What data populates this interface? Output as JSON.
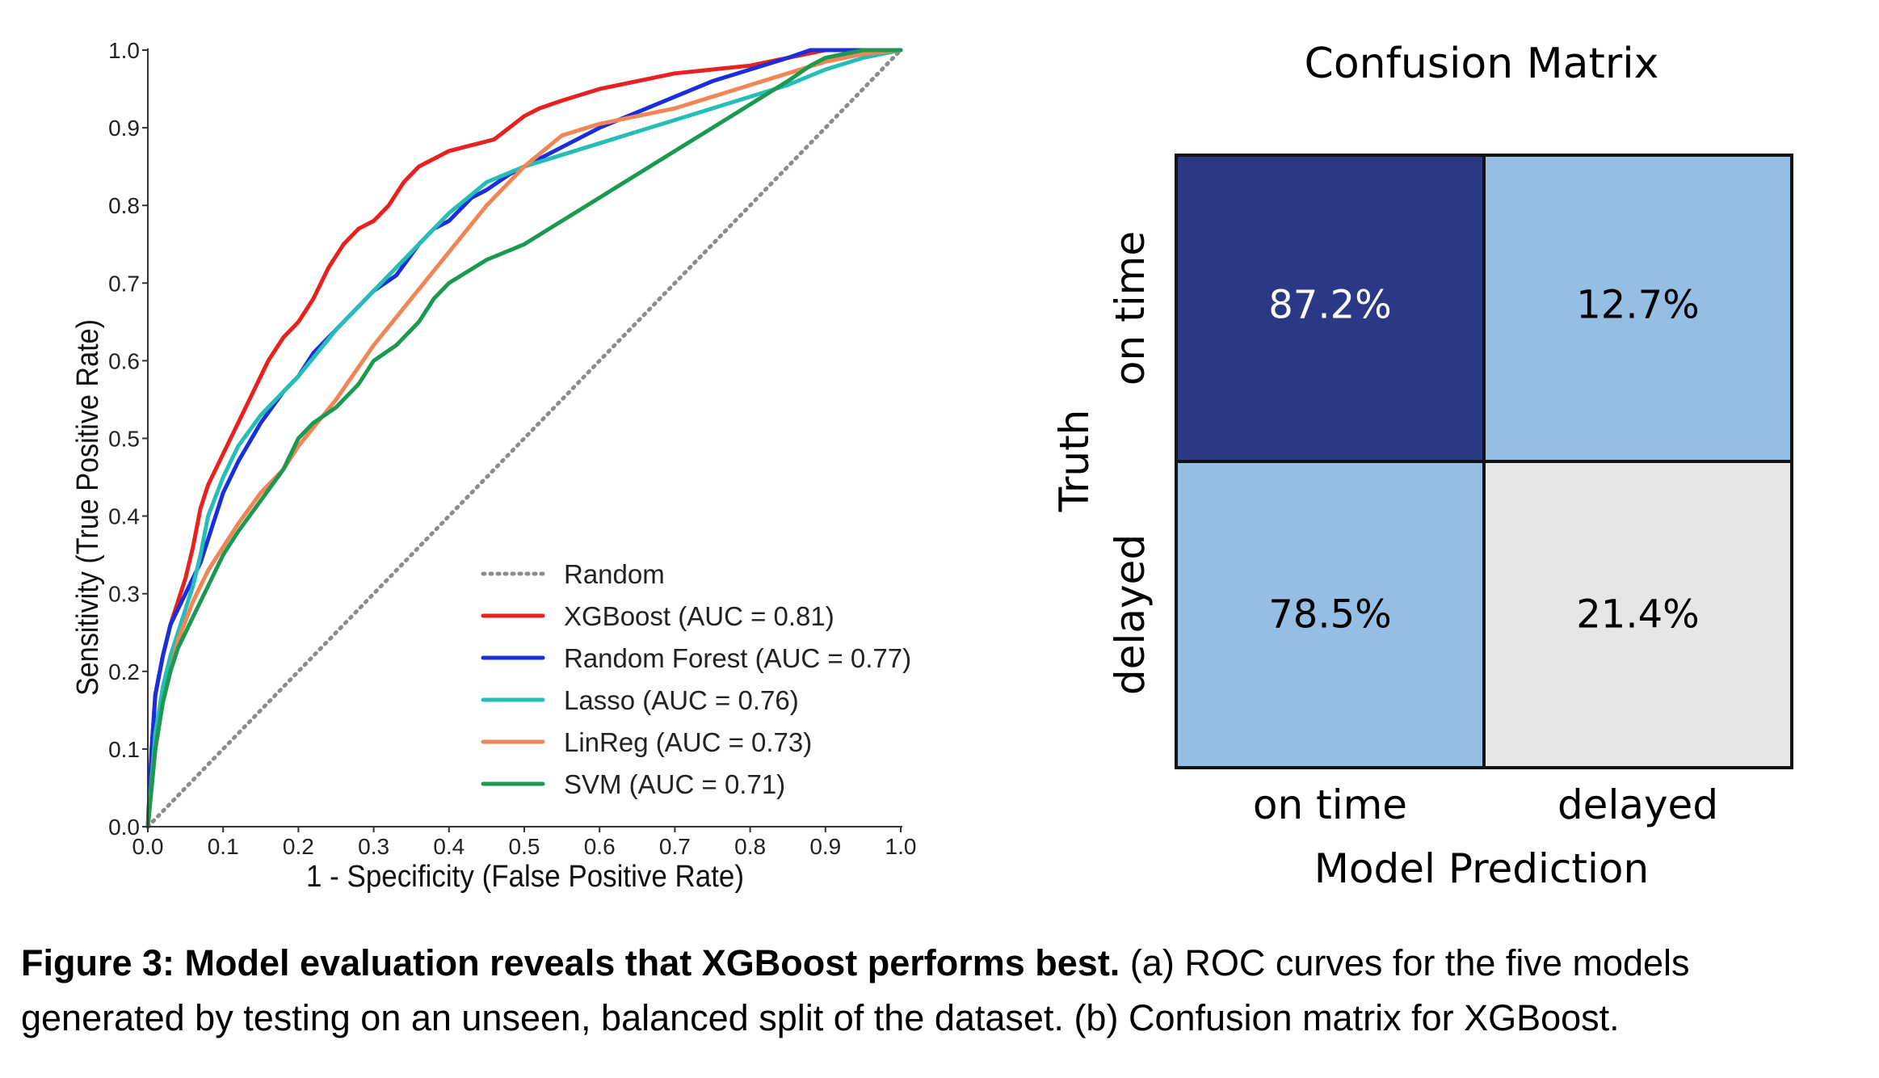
{
  "caption": {
    "label": "Figure 3: Model evaluation reveals that XGBoost performs best.",
    "text": " (a) ROC curves for the five models generated by testing on an unseen, balanced split of the dataset. (b) Confusion matrix for XGBoost."
  },
  "chart_data": [
    {
      "type": "line",
      "title": "",
      "xlabel": "1 - Specificity (False Positive Rate)",
      "ylabel": "Sensitivity (True Positive Rate)",
      "xlim": [
        0,
        1
      ],
      "ylim": [
        0,
        1
      ],
      "xticks": [
        "0.0",
        "0.1",
        "0.2",
        "0.3",
        "0.4",
        "0.5",
        "0.6",
        "0.7",
        "0.8",
        "0.9",
        "1.0"
      ],
      "yticks": [
        "0.0",
        "0.1",
        "0.2",
        "0.3",
        "0.4",
        "0.5",
        "0.6",
        "0.7",
        "0.8",
        "0.9",
        "1.0"
      ],
      "grid": false,
      "legend": "bottom-right",
      "series": [
        {
          "name": "Random",
          "color": "#8c8c8c",
          "dash": "dotted",
          "x": [
            0,
            1
          ],
          "y": [
            0,
            1
          ]
        },
        {
          "name": "XGBoost (AUC = 0.81)",
          "color": "#e8201f",
          "x": [
            0,
            0.005,
            0.01,
            0.02,
            0.03,
            0.04,
            0.05,
            0.06,
            0.07,
            0.08,
            0.1,
            0.12,
            0.14,
            0.16,
            0.18,
            0.2,
            0.22,
            0.24,
            0.26,
            0.28,
            0.3,
            0.32,
            0.34,
            0.36,
            0.38,
            0.4,
            0.42,
            0.44,
            0.46,
            0.48,
            0.5,
            0.52,
            0.55,
            0.6,
            0.65,
            0.7,
            0.75,
            0.8,
            0.85,
            0.9,
            0.95,
            1.0
          ],
          "y": [
            0,
            0.1,
            0.17,
            0.22,
            0.26,
            0.29,
            0.32,
            0.36,
            0.41,
            0.44,
            0.48,
            0.52,
            0.56,
            0.6,
            0.63,
            0.65,
            0.68,
            0.72,
            0.75,
            0.77,
            0.78,
            0.8,
            0.83,
            0.85,
            0.86,
            0.87,
            0.875,
            0.88,
            0.885,
            0.9,
            0.915,
            0.925,
            0.935,
            0.95,
            0.96,
            0.97,
            0.975,
            0.98,
            0.99,
            1.0,
            1.0,
            1.0
          ]
        },
        {
          "name": "Random Forest (AUC = 0.77)",
          "color": "#1a2edb",
          "x": [
            0,
            0.005,
            0.01,
            0.02,
            0.03,
            0.04,
            0.05,
            0.06,
            0.07,
            0.08,
            0.1,
            0.12,
            0.15,
            0.18,
            0.2,
            0.22,
            0.25,
            0.28,
            0.3,
            0.33,
            0.36,
            0.38,
            0.4,
            0.43,
            0.45,
            0.48,
            0.5,
            0.53,
            0.56,
            0.6,
            0.65,
            0.7,
            0.75,
            0.8,
            0.85,
            0.88,
            0.9,
            0.95,
            1.0
          ],
          "y": [
            0,
            0.1,
            0.17,
            0.22,
            0.26,
            0.28,
            0.3,
            0.32,
            0.34,
            0.37,
            0.43,
            0.47,
            0.52,
            0.56,
            0.58,
            0.61,
            0.64,
            0.67,
            0.69,
            0.71,
            0.75,
            0.77,
            0.78,
            0.81,
            0.82,
            0.84,
            0.85,
            0.865,
            0.88,
            0.9,
            0.92,
            0.94,
            0.96,
            0.975,
            0.99,
            1.0,
            1.0,
            1.0,
            1.0
          ]
        },
        {
          "name": "Lasso (AUC = 0.76)",
          "color": "#26bdb8",
          "x": [
            0,
            0.01,
            0.02,
            0.03,
            0.04,
            0.05,
            0.06,
            0.07,
            0.08,
            0.1,
            0.12,
            0.15,
            0.18,
            0.2,
            0.25,
            0.3,
            0.35,
            0.4,
            0.45,
            0.5,
            0.55,
            0.6,
            0.65,
            0.7,
            0.75,
            0.8,
            0.85,
            0.9,
            0.95,
            1.0
          ],
          "y": [
            0,
            0.12,
            0.18,
            0.22,
            0.25,
            0.28,
            0.31,
            0.35,
            0.4,
            0.45,
            0.49,
            0.53,
            0.56,
            0.58,
            0.64,
            0.69,
            0.74,
            0.79,
            0.83,
            0.85,
            0.865,
            0.88,
            0.895,
            0.91,
            0.925,
            0.94,
            0.955,
            0.975,
            0.99,
            1.0
          ]
        },
        {
          "name": "LinReg (AUC = 0.73)",
          "color": "#f08556",
          "x": [
            0,
            0.01,
            0.02,
            0.03,
            0.04,
            0.06,
            0.08,
            0.1,
            0.12,
            0.15,
            0.18,
            0.2,
            0.25,
            0.3,
            0.35,
            0.4,
            0.45,
            0.5,
            0.55,
            0.6,
            0.65,
            0.7,
            0.75,
            0.8,
            0.85,
            0.9,
            0.95,
            1.0
          ],
          "y": [
            0,
            0.1,
            0.16,
            0.2,
            0.24,
            0.29,
            0.33,
            0.36,
            0.39,
            0.43,
            0.46,
            0.49,
            0.55,
            0.62,
            0.68,
            0.74,
            0.8,
            0.85,
            0.89,
            0.905,
            0.915,
            0.925,
            0.94,
            0.955,
            0.97,
            0.985,
            0.995,
            1.0
          ]
        },
        {
          "name": "SVM (AUC = 0.71)",
          "color": "#1c9950",
          "x": [
            0,
            0.01,
            0.02,
            0.03,
            0.04,
            0.06,
            0.08,
            0.1,
            0.12,
            0.15,
            0.18,
            0.2,
            0.22,
            0.25,
            0.28,
            0.3,
            0.33,
            0.36,
            0.38,
            0.4,
            0.45,
            0.5,
            0.55,
            0.6,
            0.65,
            0.7,
            0.75,
            0.8,
            0.85,
            0.88,
            0.9,
            0.95,
            1.0
          ],
          "y": [
            0,
            0.1,
            0.16,
            0.2,
            0.23,
            0.27,
            0.31,
            0.35,
            0.38,
            0.42,
            0.46,
            0.5,
            0.52,
            0.54,
            0.57,
            0.6,
            0.62,
            0.65,
            0.68,
            0.7,
            0.73,
            0.75,
            0.78,
            0.81,
            0.84,
            0.87,
            0.9,
            0.93,
            0.96,
            0.98,
            0.99,
            1.0,
            1.0
          ]
        }
      ]
    },
    {
      "type": "heatmap",
      "title": "Confusion Matrix",
      "xlabel": "Model Prediction",
      "ylabel": "Truth",
      "x_categories": [
        "on time",
        "delayed"
      ],
      "y_categories": [
        "on time",
        "delayed"
      ],
      "cells": [
        [
          {
            "label": "87.2%",
            "value": 87.2,
            "color": "#2a3886",
            "text_color": "#ffffff"
          },
          {
            "label": "12.7%",
            "value": 12.7,
            "color": "#94bee4",
            "text_color": "#000000"
          }
        ],
        [
          {
            "label": "78.5%",
            "value": 78.5,
            "color": "#94bee4",
            "text_color": "#000000"
          },
          {
            "label": "21.4%",
            "value": 21.4,
            "color": "#e6e6e6",
            "text_color": "#000000"
          }
        ]
      ]
    }
  ]
}
